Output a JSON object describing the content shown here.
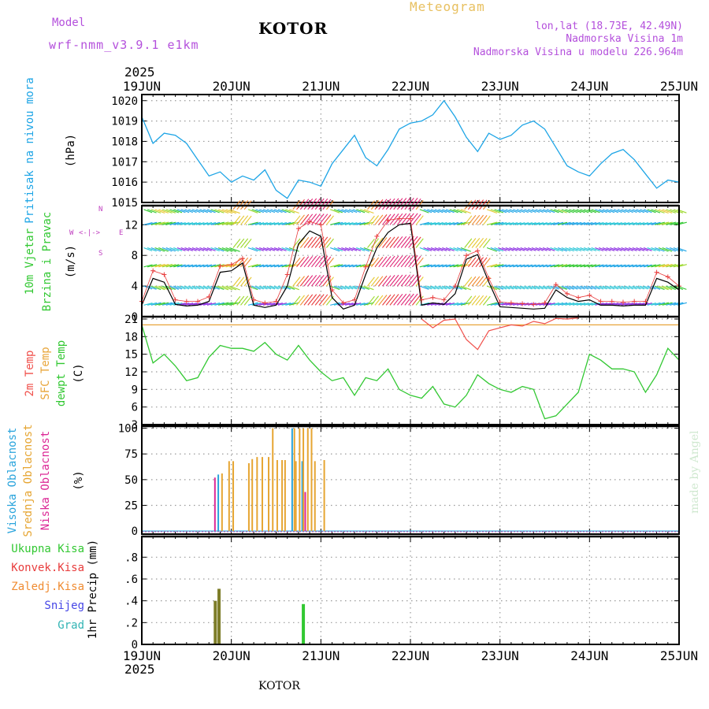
{
  "header": {
    "model_label": "Model",
    "model_name": "wrf-nmm_v3.9.1 e1km",
    "station_title": "KOTOR",
    "chart_kind": "Meteogram",
    "coords": "lon,lat (18.73E, 42.49N)",
    "altitude": "Nadmorska Visina 1m",
    "model_altitude": "Nadmorska Visina u modelu 226.964m",
    "year_top": "2025",
    "year_bottom": "2025",
    "footer_station": "KOTOR",
    "credit": "made by Angel"
  },
  "colors": {
    "pressure": "#1ea5e6",
    "temp2m": "#f0504b",
    "sfc_temp": "#e8a53a",
    "dewpoint": "#32c832",
    "high_cloud": "#2aa4dc",
    "mid_cloud": "#e6a532",
    "low_cloud": "#dc2896",
    "wind_speed": "#000000",
    "wind_gust": "#e83c3c",
    "precip_total": "#32c832",
    "precip_conv": "#e83c3c",
    "precip_frozen": "#f08c32",
    "precip_snow": "#4646e6",
    "precip_hail": "#32b4b4",
    "wind_label": "#c040c0",
    "header_purple": "#b450dc"
  },
  "chart_data": [
    {
      "type": "line",
      "panel": "pressure",
      "ylabel_lines": [
        "Pritisak na nivou mora",
        "(hPa)"
      ],
      "x_tick_labels": [
        "19JUN",
        "20JUN",
        "21JUN",
        "22JUN",
        "23JUN",
        "24JUN",
        "25JUN"
      ],
      "ylim": [
        1015,
        1020.3
      ],
      "y_ticks": [
        1015,
        1016,
        1017,
        1018,
        1019,
        1020
      ],
      "grid": true,
      "x_hours": [
        0,
        3,
        6,
        9,
        12,
        15,
        18,
        21,
        24,
        27,
        30,
        33,
        36,
        39,
        42,
        45,
        48,
        51,
        54,
        57,
        60,
        63,
        66,
        69,
        72,
        75,
        78,
        81,
        84,
        87,
        90,
        93,
        96,
        99,
        102,
        105,
        108,
        111,
        114,
        117,
        120,
        123,
        126,
        129,
        132,
        135,
        138,
        141,
        144
      ],
      "series": [
        {
          "values": [
            1019.2,
            1017.9,
            1018.4,
            1018.3,
            1017.9,
            1017.1,
            1016.3,
            1016.5,
            1016.0,
            1016.3,
            1016.1,
            1016.6,
            1015.6,
            1015.2,
            1016.1,
            1016.0,
            1015.8,
            1016.9,
            1017.6,
            1018.3,
            1017.2,
            1016.8,
            1017.6,
            1018.6,
            1018.9,
            1019.0,
            1019.3,
            1020.0,
            1019.2,
            1018.2,
            1017.5,
            1018.4,
            1018.1,
            1018.3,
            1018.8,
            1019.0,
            1018.6,
            1017.7,
            1016.8,
            1016.5,
            1016.3,
            1016.9,
            1017.4,
            1017.6,
            1017.1,
            1016.4,
            1015.7,
            1016.1,
            1016.0
          ]
        }
      ]
    },
    {
      "type": "line",
      "panel": "wind",
      "ylabel_lines": [
        "10m Vjetar",
        "Brzina i Pravac",
        "(m/s)"
      ],
      "direction_legend": [
        "W",
        "<-|->",
        "E",
        "N",
        "S"
      ],
      "ylim": [
        0,
        14.5
      ],
      "y_ticks": [
        0,
        4,
        8,
        12
      ],
      "grid": true,
      "x_hours": [
        0,
        3,
        6,
        9,
        12,
        15,
        18,
        21,
        24,
        27,
        30,
        33,
        36,
        39,
        42,
        45,
        48,
        51,
        54,
        57,
        60,
        63,
        66,
        69,
        72,
        75,
        78,
        81,
        84,
        87,
        90,
        93,
        96,
        99,
        102,
        105,
        108,
        111,
        114,
        117,
        120,
        123,
        126,
        129,
        132,
        135,
        138,
        141,
        144
      ],
      "series": [
        {
          "name": "speed",
          "values": [
            1.5,
            5.0,
            4.5,
            1.6,
            1.4,
            1.5,
            2.0,
            5.8,
            6.0,
            7.0,
            1.5,
            1.2,
            1.5,
            4.0,
            9.5,
            11.2,
            10.5,
            2.5,
            1.0,
            1.5,
            5.5,
            9.0,
            11.0,
            12.0,
            12.2,
            1.5,
            1.8,
            1.6,
            3.0,
            7.5,
            8.1,
            4.5,
            1.3,
            1.2,
            1.1,
            1.0,
            1.1,
            3.5,
            2.5,
            2.0,
            2.2,
            1.5,
            1.5,
            1.4,
            1.5,
            1.5,
            5.0,
            4.5,
            3.5
          ]
        },
        {
          "name": "gust",
          "values": [
            2.0,
            6.0,
            5.5,
            2.2,
            2.0,
            2.0,
            2.6,
            6.6,
            6.8,
            7.6,
            2.2,
            1.8,
            2.0,
            5.5,
            11.5,
            12.4,
            12.0,
            3.5,
            1.8,
            2.2,
            6.5,
            10.5,
            12.6,
            12.8,
            12.8,
            2.2,
            2.5,
            2.2,
            4.0,
            8.0,
            8.6,
            5.0,
            1.9,
            1.8,
            1.7,
            1.6,
            1.8,
            4.2,
            3.0,
            2.5,
            2.8,
            2.0,
            2.0,
            1.9,
            2.0,
            2.0,
            5.8,
            5.2,
            4.0
          ]
        }
      ]
    },
    {
      "type": "line",
      "panel": "temperature",
      "ylabel_lines": [
        "2m Temp",
        "SFC Temp",
        "dewpt Temp",
        "(C)"
      ],
      "ylim": [
        3,
        21.4
      ],
      "y_ticks": [
        3,
        6,
        9,
        12,
        15,
        18,
        21
      ],
      "grid": true,
      "x_hours": [
        0,
        3,
        6,
        9,
        12,
        15,
        18,
        21,
        24,
        27,
        30,
        33,
        36,
        39,
        42,
        45,
        48,
        51,
        54,
        57,
        60,
        63,
        66,
        69,
        72,
        75,
        78,
        81,
        84,
        87,
        90,
        93,
        96,
        99,
        102,
        105,
        108,
        111,
        114,
        117,
        120,
        123,
        126,
        129,
        132,
        135,
        138,
        141,
        144
      ],
      "series": [
        {
          "name": "2m Temp",
          "values": [
            null,
            null,
            null,
            null,
            null,
            null,
            null,
            null,
            null,
            null,
            null,
            null,
            null,
            null,
            null,
            null,
            null,
            null,
            null,
            null,
            null,
            null,
            null,
            null,
            null,
            null,
            null,
            null,
            null,
            null,
            null,
            null,
            null,
            null,
            null,
            null,
            null,
            null,
            null,
            null,
            null,
            null,
            null,
            null,
            null,
            null,
            null,
            null,
            null
          ]
        },
        {
          "name": "SFC Temp",
          "values": [
            20.0,
            20.0,
            20.0,
            20.0,
            20.0,
            20.0,
            20.0,
            20.0,
            20.0,
            20.0,
            20.0,
            20.0,
            20.0,
            20.0,
            20.0,
            20.0,
            20.0,
            20.0,
            20.0,
            20.0,
            20.0,
            20.0,
            20.0,
            20.0,
            20.0,
            20.0,
            20.0,
            20.0,
            20.0,
            20.0,
            20.0,
            20.0,
            20.0,
            20.0,
            20.0,
            20.0,
            20.0,
            20.0,
            20.0,
            20.0,
            20.0,
            20.0,
            20.0,
            20.0,
            20.0,
            20.0,
            20.0,
            20.0,
            20.0
          ]
        },
        {
          "name": "dewpt Temp",
          "values": [
            20.0,
            13.5,
            15.0,
            13.0,
            10.5,
            11.0,
            14.5,
            16.5,
            16.0,
            16.0,
            15.5,
            17.0,
            15.0,
            14.0,
            16.5,
            14.0,
            12.0,
            10.5,
            11.0,
            8.0,
            11.0,
            10.5,
            12.5,
            9.0,
            8.0,
            7.5,
            9.5,
            6.5,
            6.0,
            8.0,
            11.5,
            10.0,
            9.0,
            8.5,
            9.5,
            9.0,
            4.0,
            4.5,
            6.5,
            8.5,
            15.0,
            14.0,
            12.5,
            12.5,
            12.0,
            8.5,
            11.5,
            16.0,
            14.0
          ]
        }
      ],
      "temp2m_points": [
        [
          75,
          21.0
        ],
        [
          78,
          19.5
        ],
        [
          81,
          20.8
        ],
        [
          84,
          21.0
        ],
        [
          87,
          17.5
        ],
        [
          90,
          15.8
        ],
        [
          93,
          19.0
        ],
        [
          96,
          19.5
        ],
        [
          99,
          20.0
        ],
        [
          102,
          19.8
        ],
        [
          105,
          20.6
        ],
        [
          108,
          20.2
        ],
        [
          111,
          21.1
        ],
        [
          114,
          21.0
        ],
        [
          117,
          21.2
        ]
      ]
    },
    {
      "type": "bar",
      "panel": "cloud",
      "ylabel_lines": [
        "Visoka Oblacnost",
        "Srednja Oblacnost",
        "Niska Oblacnost",
        "(%)"
      ],
      "ylim": [
        -3,
        102
      ],
      "y_ticks": [
        0,
        25,
        50,
        75,
        100
      ],
      "grid": true,
      "series": [
        {
          "name": "Visoka Oblacnost",
          "points": [
            [
              20.5,
              55
            ],
            [
              40.3,
              100
            ],
            [
              43.0,
              68
            ]
          ]
        },
        {
          "name": "Srednja Oblacnost",
          "points": [
            [
              21.5,
              56
            ],
            [
              23.4,
              68
            ],
            [
              24.5,
              68
            ],
            [
              28.7,
              66
            ],
            [
              29.6,
              70
            ],
            [
              30.9,
              72
            ],
            [
              32.3,
              72
            ],
            [
              34.0,
              72
            ],
            [
              35.1,
              100
            ],
            [
              36.3,
              69
            ],
            [
              37.6,
              69
            ],
            [
              38.4,
              69
            ],
            [
              40.9,
              100
            ],
            [
              41.3,
              68
            ],
            [
              42.3,
              100
            ],
            [
              43.3,
              100
            ],
            [
              44.5,
              100
            ],
            [
              45.5,
              100
            ],
            [
              46.4,
              68
            ],
            [
              48.9,
              69
            ]
          ]
        },
        {
          "name": "Niska Oblacnost",
          "points": [
            [
              19.6,
              52
            ],
            [
              43.8,
              38
            ]
          ]
        }
      ]
    },
    {
      "type": "bar",
      "panel": "precip",
      "ylabel_lines": [
        "1hr Precip (mm)"
      ],
      "legend": [
        "Ukupna Kisa",
        "Konvek.Kisa",
        "Zaledj.Kisa",
        "Snijeg",
        "Grad"
      ],
      "ylim": [
        0,
        0.99
      ],
      "y_ticks": [
        0,
        0.2,
        0.4,
        0.6,
        0.8
      ],
      "grid": true,
      "series": [
        {
          "name": "Ukupna Kisa",
          "points": [
            [
              19.7,
              0.4
            ],
            [
              20.7,
              0.51
            ],
            [
              43.3,
              0.37
            ]
          ]
        }
      ]
    }
  ]
}
